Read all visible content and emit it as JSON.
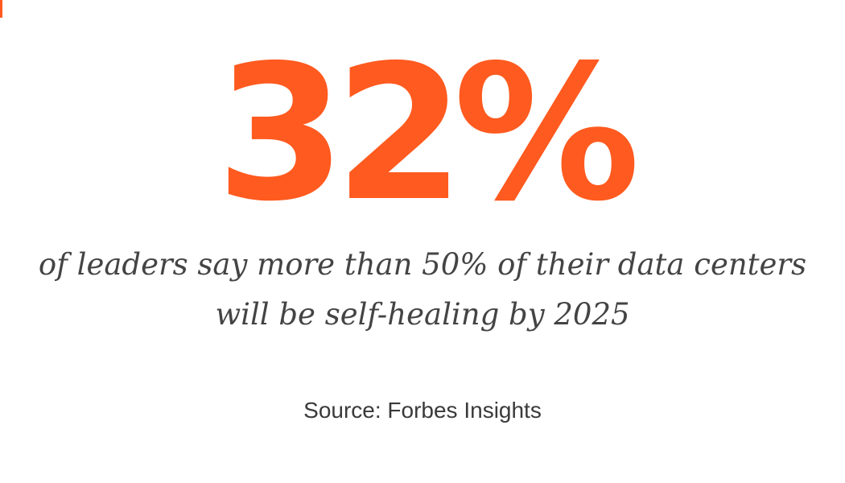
{
  "stat": {
    "figure": "32%",
    "caption_line1": "of leaders say more than 50% of their data centers",
    "caption_line2": "will be self-healing by 2025",
    "source": "Source: Forbes Insights"
  },
  "colors": {
    "accent": "#ff5a1f",
    "text": "#444444"
  }
}
